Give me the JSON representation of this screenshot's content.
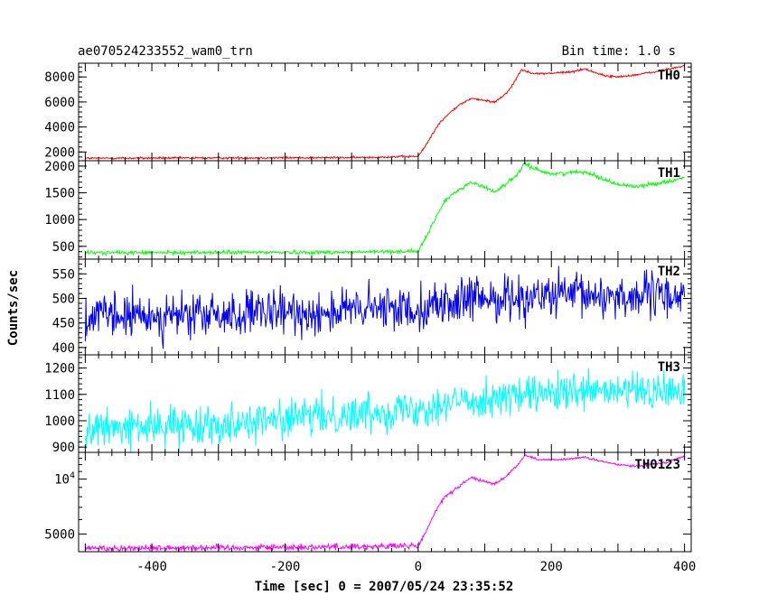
{
  "header": {
    "title": "ae070524233552_wam0_trn",
    "bin_time": "Bin time: 1.0 s"
  },
  "chart_data": {
    "type": "line",
    "title": "ae070524233552_wam0_trn",
    "xlabel": "Time [sec] 0 = 2007/05/24 23:35:52",
    "ylabel": "Counts/sec",
    "xlim": [
      -510,
      410
    ],
    "xticks": [
      "-400",
      "-200",
      "0",
      "200",
      "400"
    ],
    "xtick_values": [
      -400,
      -200,
      0,
      200,
      400
    ],
    "panels": [
      {
        "name": "TH0",
        "color": "#ff0000",
        "ylim": [
          1300,
          9100
        ],
        "yticks": [
          "2000",
          "4000",
          "6000",
          "8000"
        ],
        "ytick_values": [
          2000,
          4000,
          6000,
          8000
        ],
        "ylog": false,
        "noise": 60,
        "x": [
          -500,
          -100,
          0,
          10,
          20,
          30,
          45,
          60,
          80,
          100,
          115,
          130,
          140,
          155,
          165,
          180,
          200,
          230,
          250,
          280,
          300,
          330,
          360,
          400
        ],
        "values": [
          1500,
          1550,
          1650,
          2400,
          3300,
          4200,
          5000,
          5700,
          6300,
          6100,
          6000,
          6600,
          7200,
          8600,
          8400,
          8250,
          8300,
          8400,
          8650,
          8100,
          8000,
          8200,
          8450,
          8900
        ]
      },
      {
        "name": "TH1",
        "color": "#00ff00",
        "ylim": [
          260,
          2100
        ],
        "yticks": [
          "500",
          "1000",
          "1500",
          "2000"
        ],
        "ytick_values": [
          500,
          1000,
          1500,
          2000
        ],
        "ylog": false,
        "noise": 25,
        "x": [
          -500,
          -100,
          0,
          10,
          25,
          40,
          60,
          80,
          100,
          115,
          130,
          150,
          160,
          175,
          200,
          230,
          250,
          270,
          300,
          330,
          370,
          400
        ],
        "values": [
          380,
          390,
          410,
          620,
          1000,
          1350,
          1550,
          1700,
          1600,
          1520,
          1650,
          1850,
          2050,
          1950,
          1850,
          1880,
          1900,
          1800,
          1650,
          1620,
          1700,
          1780
        ]
      },
      {
        "name": "TH2",
        "color": "#0000ff",
        "ylim": [
          385,
          580
        ],
        "yticks": [
          "400",
          "450",
          "500",
          "550"
        ],
        "ytick_values": [
          400,
          450,
          500,
          550
        ],
        "ylog": false,
        "noise": 32,
        "x": [
          -500,
          -300,
          -150,
          0,
          100,
          200,
          300,
          400
        ],
        "values": [
          462,
          465,
          472,
          482,
          500,
          505,
          505,
          505
        ]
      },
      {
        "name": "TH3",
        "color": "#00ffff",
        "ylim": [
          880,
          1250
        ],
        "yticks": [
          "900",
          "1000",
          "1100",
          "1200"
        ],
        "ytick_values": [
          900,
          1000,
          1100,
          1200
        ],
        "ylog": false,
        "noise": 50,
        "x": [
          -500,
          -300,
          -100,
          0,
          100,
          200,
          300,
          400
        ],
        "values": [
          965,
          990,
          1025,
          1050,
          1085,
          1100,
          1110,
          1110
        ]
      },
      {
        "name": "TH0123",
        "color": "#ff00ff",
        "ylim": [
          4000,
          14000
        ],
        "yticks": [
          "5000",
          "10^4"
        ],
        "ytick_values": [
          5000,
          10000
        ],
        "ylog": true,
        "noise": 120,
        "x": [
          -500,
          -100,
          0,
          10,
          25,
          40,
          60,
          80,
          100,
          115,
          130,
          150,
          160,
          180,
          200,
          230,
          250,
          270,
          300,
          330,
          370,
          400
        ],
        "values": [
          4180,
          4260,
          4300,
          5000,
          6500,
          8000,
          9000,
          10200,
          9700,
          9400,
          10200,
          12000,
          13500,
          12800,
          12700,
          12900,
          13200,
          12600,
          12000,
          11800,
          12300,
          13300
        ]
      }
    ]
  }
}
